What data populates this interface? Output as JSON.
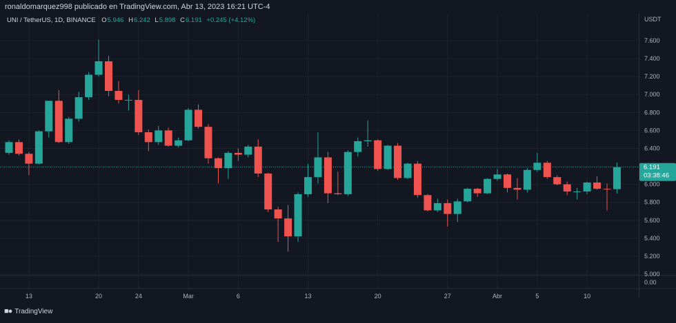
{
  "header": {
    "caption": "ronaldomarquez998 publicado en TradingView.com, Abr 13, 2023 16:21 UTC-4"
  },
  "legend": {
    "symbol": "UNI / TetherUS, 1D, BINANCE",
    "o_label": "O",
    "o_value": "5.946",
    "h_label": "H",
    "h_value": "6.242",
    "l_label": "L",
    "l_value": "5.898",
    "c_label": "C",
    "c_value": "6.191",
    "change": "+0.245 (+4.12%)"
  },
  "price_scale": {
    "currency": "USDT",
    "last_price": "6.191",
    "countdown": "03:38:46"
  },
  "colors": {
    "up": "#26a69a",
    "down": "#ef5350",
    "background": "#131722",
    "grid": "#1e222d",
    "text": "#b2b5be"
  },
  "branding": {
    "logo_text": "TradingView",
    "logo_icon": "tradingview-logo-icon"
  },
  "chart_data": {
    "type": "candlestick",
    "title": "UNI / TetherUS, 1D, BINANCE",
    "ylim": [
      5.0,
      7.8
    ],
    "y_ticks": [
      "7.600",
      "7.400",
      "7.200",
      "7.000",
      "6.800",
      "6.600",
      "6.400",
      "6.200",
      "6.000",
      "5.800",
      "5.600",
      "5.400",
      "5.200",
      "5.000"
    ],
    "volume_pane_tick": "0.00",
    "x_tick_labels": [
      {
        "label": "13",
        "index": 2
      },
      {
        "label": "20",
        "index": 9
      },
      {
        "label": "24",
        "index": 13
      },
      {
        "label": "Mar",
        "index": 18
      },
      {
        "label": "6",
        "index": 23
      },
      {
        "label": "13",
        "index": 30
      },
      {
        "label": "20",
        "index": 37
      },
      {
        "label": "27",
        "index": 44
      },
      {
        "label": "Abr",
        "index": 49
      },
      {
        "label": "5",
        "index": 53
      },
      {
        "label": "10",
        "index": 58
      }
    ],
    "last_price": 6.191,
    "candles": [
      {
        "o": 6.35,
        "h": 6.49,
        "l": 6.33,
        "c": 6.47
      },
      {
        "o": 6.47,
        "h": 6.5,
        "l": 6.32,
        "c": 6.34
      },
      {
        "o": 6.34,
        "h": 6.36,
        "l": 6.1,
        "c": 6.23
      },
      {
        "o": 6.23,
        "h": 6.6,
        "l": 6.22,
        "c": 6.59
      },
      {
        "o": 6.59,
        "h": 6.93,
        "l": 6.52,
        "c": 6.93
      },
      {
        "o": 6.93,
        "h": 7.05,
        "l": 6.46,
        "c": 6.47
      },
      {
        "o": 6.47,
        "h": 6.75,
        "l": 6.45,
        "c": 6.73
      },
      {
        "o": 6.73,
        "h": 7.03,
        "l": 6.7,
        "c": 6.97
      },
      {
        "o": 6.97,
        "h": 7.25,
        "l": 6.94,
        "c": 7.22
      },
      {
        "o": 7.22,
        "h": 7.61,
        "l": 7.2,
        "c": 7.37
      },
      {
        "o": 7.37,
        "h": 7.43,
        "l": 6.98,
        "c": 7.04
      },
      {
        "o": 7.04,
        "h": 7.15,
        "l": 6.9,
        "c": 6.94
      },
      {
        "o": 6.94,
        "h": 7.0,
        "l": 6.82,
        "c": 6.94
      },
      {
        "o": 6.94,
        "h": 7.05,
        "l": 6.55,
        "c": 6.58
      },
      {
        "o": 6.58,
        "h": 6.61,
        "l": 6.37,
        "c": 6.47
      },
      {
        "o": 6.47,
        "h": 6.65,
        "l": 6.44,
        "c": 6.6
      },
      {
        "o": 6.6,
        "h": 6.63,
        "l": 6.42,
        "c": 6.43
      },
      {
        "o": 6.43,
        "h": 6.52,
        "l": 6.41,
        "c": 6.49
      },
      {
        "o": 6.49,
        "h": 6.85,
        "l": 6.48,
        "c": 6.83
      },
      {
        "o": 6.83,
        "h": 6.89,
        "l": 6.62,
        "c": 6.64
      },
      {
        "o": 6.64,
        "h": 6.67,
        "l": 6.23,
        "c": 6.29
      },
      {
        "o": 6.29,
        "h": 6.3,
        "l": 6.01,
        "c": 6.18
      },
      {
        "o": 6.18,
        "h": 6.37,
        "l": 6.06,
        "c": 6.35
      },
      {
        "o": 6.35,
        "h": 6.4,
        "l": 6.26,
        "c": 6.33
      },
      {
        "o": 6.33,
        "h": 6.44,
        "l": 6.3,
        "c": 6.42
      },
      {
        "o": 6.42,
        "h": 6.5,
        "l": 6.08,
        "c": 6.12
      },
      {
        "o": 6.12,
        "h": 6.13,
        "l": 5.69,
        "c": 5.72
      },
      {
        "o": 5.72,
        "h": 5.75,
        "l": 5.36,
        "c": 5.62
      },
      {
        "o": 5.62,
        "h": 5.77,
        "l": 5.25,
        "c": 5.42
      },
      {
        "o": 5.42,
        "h": 5.91,
        "l": 5.36,
        "c": 5.89
      },
      {
        "o": 5.89,
        "h": 6.23,
        "l": 5.86,
        "c": 6.08
      },
      {
        "o": 6.08,
        "h": 6.58,
        "l": 6.01,
        "c": 6.3
      },
      {
        "o": 6.3,
        "h": 6.36,
        "l": 5.79,
        "c": 5.9
      },
      {
        "o": 5.9,
        "h": 6.14,
        "l": 5.88,
        "c": 5.89
      },
      {
        "o": 5.89,
        "h": 6.38,
        "l": 5.87,
        "c": 6.36
      },
      {
        "o": 6.36,
        "h": 6.52,
        "l": 6.31,
        "c": 6.48
      },
      {
        "o": 6.48,
        "h": 6.71,
        "l": 6.42,
        "c": 6.49
      },
      {
        "o": 6.49,
        "h": 6.5,
        "l": 6.15,
        "c": 6.17
      },
      {
        "o": 6.17,
        "h": 6.44,
        "l": 6.16,
        "c": 6.43
      },
      {
        "o": 6.43,
        "h": 6.46,
        "l": 6.05,
        "c": 6.07
      },
      {
        "o": 6.07,
        "h": 6.24,
        "l": 6.06,
        "c": 6.23
      },
      {
        "o": 6.23,
        "h": 6.26,
        "l": 5.85,
        "c": 5.88
      },
      {
        "o": 5.88,
        "h": 5.89,
        "l": 5.7,
        "c": 5.71
      },
      {
        "o": 5.71,
        "h": 5.84,
        "l": 5.69,
        "c": 5.79
      },
      {
        "o": 5.79,
        "h": 5.83,
        "l": 5.53,
        "c": 5.67
      },
      {
        "o": 5.67,
        "h": 5.84,
        "l": 5.58,
        "c": 5.81
      },
      {
        "o": 5.81,
        "h": 5.96,
        "l": 5.8,
        "c": 5.95
      },
      {
        "o": 5.95,
        "h": 5.96,
        "l": 5.86,
        "c": 5.9
      },
      {
        "o": 5.9,
        "h": 6.07,
        "l": 5.89,
        "c": 6.06
      },
      {
        "o": 6.06,
        "h": 6.17,
        "l": 6.04,
        "c": 6.11
      },
      {
        "o": 6.11,
        "h": 6.12,
        "l": 5.91,
        "c": 5.96
      },
      {
        "o": 5.96,
        "h": 6.07,
        "l": 5.83,
        "c": 5.94
      },
      {
        "o": 5.94,
        "h": 6.18,
        "l": 5.91,
        "c": 6.16
      },
      {
        "o": 6.16,
        "h": 6.35,
        "l": 6.14,
        "c": 6.24
      },
      {
        "o": 6.24,
        "h": 6.26,
        "l": 6.06,
        "c": 6.08
      },
      {
        "o": 6.08,
        "h": 6.1,
        "l": 5.99,
        "c": 6.0
      },
      {
        "o": 6.0,
        "h": 6.03,
        "l": 5.88,
        "c": 5.92
      },
      {
        "o": 5.92,
        "h": 5.96,
        "l": 5.83,
        "c": 5.92
      },
      {
        "o": 5.92,
        "h": 6.03,
        "l": 5.89,
        "c": 6.02
      },
      {
        "o": 6.02,
        "h": 6.09,
        "l": 5.94,
        "c": 5.95
      },
      {
        "o": 5.95,
        "h": 6.01,
        "l": 5.71,
        "c": 5.946
      },
      {
        "o": 5.946,
        "h": 6.242,
        "l": 5.898,
        "c": 6.191
      }
    ]
  }
}
